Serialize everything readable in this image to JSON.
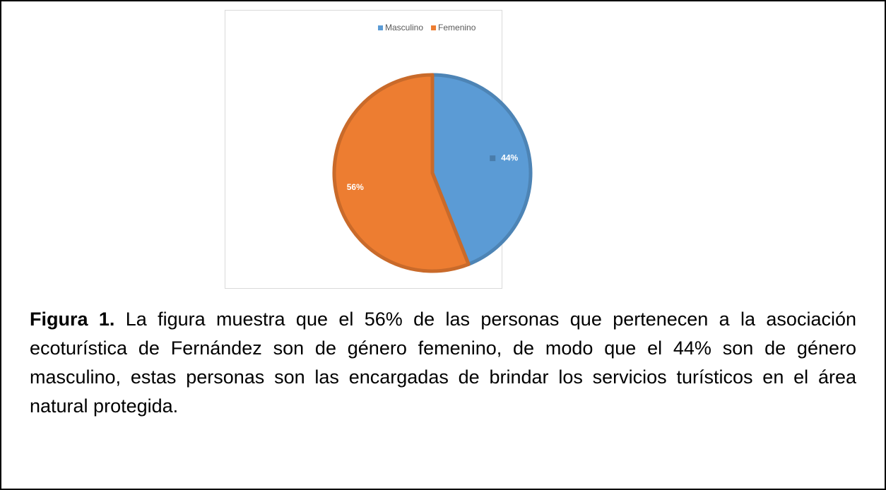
{
  "chart_data": {
    "type": "pie",
    "categories": [
      "Masculino",
      "Femenino"
    ],
    "values": [
      44,
      56
    ],
    "value_labels": [
      "44%",
      "56%"
    ],
    "colors": [
      "#5b9bd5",
      "#ed7d31"
    ]
  },
  "caption": {
    "label": "Figura 1.",
    "text": "La figura muestra que el 56% de las personas que pertenecen a la asociación ecoturística de Fernández son de género femenino, de modo que el 44% son de género masculino, estas personas son las encargadas de brindar los servicios turísticos en el área natural protegida."
  }
}
